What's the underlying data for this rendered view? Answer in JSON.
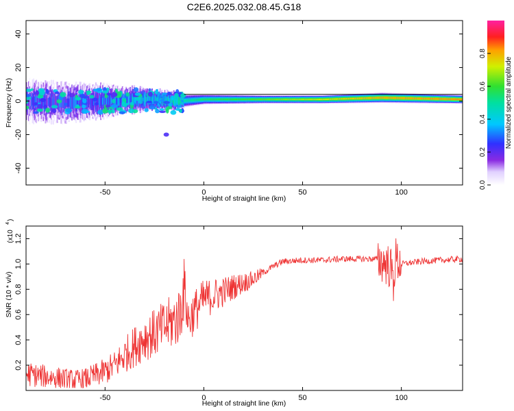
{
  "title": "C2E6.2025.032.08.45.G18",
  "chart_data": [
    {
      "type": "heatmap",
      "xlabel": "Height of straight line (km)",
      "ylabel": "Frequency (Hz)",
      "xlim": [
        -90,
        131
      ],
      "ylim": [
        -50,
        48
      ],
      "xticks": [
        -50,
        0,
        50,
        100
      ],
      "yticks": [
        -40,
        -20,
        0,
        20,
        40
      ],
      "colorbar": {
        "label": "Normalized spectral amplitude",
        "range": [
          0,
          1
        ],
        "ticks": [
          "0.0",
          "0.2",
          "0.4",
          "0.6",
          "0.8"
        ]
      },
      "ridge": [
        {
          "x": -90,
          "freq": 0,
          "spread": 12,
          "amp": 0.25
        },
        {
          "x": -70,
          "freq": -1,
          "spread": 11,
          "amp": 0.3
        },
        {
          "x": -50,
          "freq": 0,
          "spread": 9,
          "amp": 0.35
        },
        {
          "x": -30,
          "freq": 1,
          "spread": 6,
          "amp": 0.45
        },
        {
          "x": -12,
          "freq": 0,
          "spread": 4,
          "amp": 0.55
        },
        {
          "x": 0,
          "freq": 1,
          "spread": 3,
          "amp": 0.65
        },
        {
          "x": 30,
          "freq": 1,
          "spread": 2.5,
          "amp": 0.75
        },
        {
          "x": 60,
          "freq": 1,
          "spread": 2.5,
          "amp": 0.85
        },
        {
          "x": 90,
          "freq": 2,
          "spread": 3,
          "amp": 0.95
        },
        {
          "x": 131,
          "freq": 1,
          "spread": 2.5,
          "amp": 0.98
        }
      ]
    },
    {
      "type": "line",
      "series": [
        {
          "x": [
            -90,
            -85,
            -80,
            -75,
            -70,
            -65,
            -60,
            -55,
            -50,
            -45,
            -40,
            -35,
            -30,
            -25,
            -20,
            -15,
            -12,
            -10,
            -8,
            -5,
            0,
            5,
            10,
            15,
            20,
            25,
            30,
            35,
            40,
            50,
            60,
            70,
            80,
            88,
            90,
            93,
            95,
            96,
            97,
            98,
            100,
            105,
            110,
            120,
            131
          ],
          "y": [
            0.13,
            0.12,
            0.11,
            0.1,
            0.09,
            0.08,
            0.09,
            0.12,
            0.15,
            0.2,
            0.28,
            0.35,
            0.42,
            0.45,
            0.5,
            0.55,
            0.6,
            0.85,
            0.55,
            0.62,
            0.72,
            0.75,
            0.78,
            0.82,
            0.85,
            0.88,
            0.93,
            0.98,
            1.02,
            1.03,
            1.03,
            1.04,
            1.04,
            1.04,
            1.02,
            1.0,
            0.95,
            0.85,
            1.05,
            1.02,
            1.0,
            1.01,
            1.02,
            1.03,
            1.04
          ]
        }
      ],
      "xlabel": "Height of straight line (km)",
      "ylabel": "SNR (10 * v/v)",
      "yscale_note": "(x10",
      "yscale_exp": "4",
      "xlim": [
        -90,
        131
      ],
      "ylim": [
        0,
        1.3
      ],
      "xticks": [
        -50,
        0,
        50,
        100
      ],
      "yticks": [
        "0.2",
        "0.4",
        "0.6",
        "0.8",
        "1.0",
        "1.2"
      ],
      "color": "#ee3333"
    }
  ]
}
